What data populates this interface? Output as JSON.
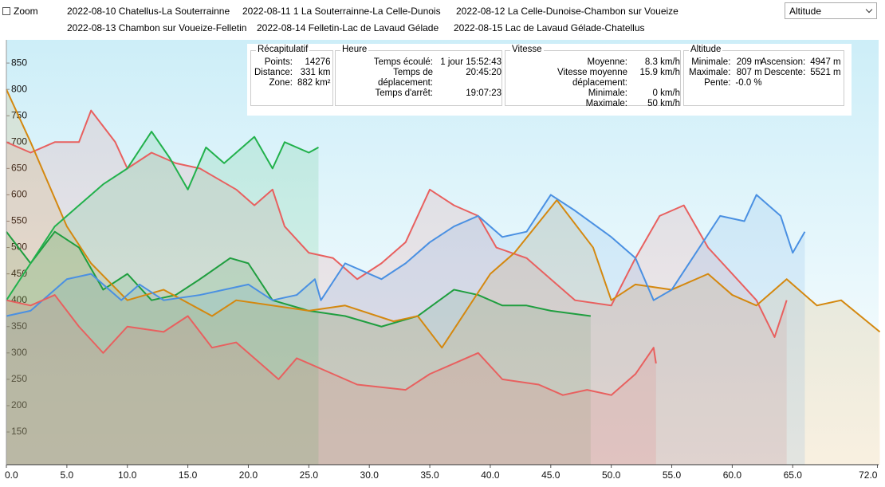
{
  "toolbar": {
    "zoom": "Zoom",
    "dropdown": "Altitude"
  },
  "chart_data": {
    "type": "line",
    "xlim": [
      0,
      72.1
    ],
    "ylim": [
      88,
      894
    ],
    "xticks": [
      {
        "value": 0,
        "label": "0.0"
      },
      {
        "value": 5,
        "label": "5.0"
      },
      {
        "value": 10,
        "label": "10.0"
      },
      {
        "value": 15,
        "label": "15.0"
      },
      {
        "value": 20,
        "label": "20.0"
      },
      {
        "value": 25,
        "label": "25.0"
      },
      {
        "value": 30,
        "label": "30.0"
      },
      {
        "value": 35,
        "label": "35.0"
      },
      {
        "value": 40,
        "label": "40.0"
      },
      {
        "value": 45,
        "label": "45.0"
      },
      {
        "value": 50,
        "label": "50.0"
      },
      {
        "value": 55,
        "label": "55.0"
      },
      {
        "value": 60,
        "label": "60.0"
      },
      {
        "value": 65,
        "label": "65.0"
      },
      {
        "value": 72,
        "label": "72.0"
      }
    ],
    "yticks": [
      150,
      200,
      250,
      300,
      350,
      400,
      450,
      500,
      550,
      600,
      650,
      700,
      750,
      800,
      850
    ],
    "series": [
      {
        "name": "2022-08-10 Chatellus-La Souterrainne",
        "color": "#1f9e3f",
        "x": [
          0,
          2,
          4,
          6,
          8,
          10,
          12,
          14,
          16,
          18.5,
          20,
          22,
          25,
          28,
          31,
          34,
          37,
          39,
          41,
          43,
          45,
          48.3
        ],
        "values": [
          530,
          470,
          530,
          500,
          420,
          450,
          400,
          410,
          440,
          480,
          470,
          400,
          380,
          370,
          350,
          370,
          420,
          410,
          390,
          390,
          380,
          370
        ]
      },
      {
        "name": "2022-08-11 1 La Souterrainne-La Celle-Dunois",
        "color": "#e8605f",
        "x": [
          0,
          2,
          4,
          6,
          7,
          9,
          10,
          12,
          14,
          16,
          19,
          20.5,
          22,
          23,
          25,
          27,
          29,
          31,
          33,
          35,
          37,
          39,
          40.5,
          43,
          45,
          47,
          50,
          52,
          54,
          56,
          58,
          60,
          62,
          63.5,
          64.5
        ],
        "values": [
          700,
          680,
          700,
          700,
          760,
          700,
          650,
          680,
          660,
          650,
          610,
          580,
          610,
          540,
          490,
          480,
          440,
          470,
          510,
          610,
          580,
          560,
          500,
          480,
          440,
          400,
          390,
          480,
          560,
          580,
          500,
          450,
          400,
          330,
          400
        ]
      },
      {
        "name": "2022-08-12 La Celle-Dunoise-Chambon sur Voueize",
        "color": "#d4880f",
        "x": [
          0,
          2,
          5,
          7,
          10,
          13,
          17,
          19,
          25,
          28,
          32,
          34,
          36,
          38,
          40,
          42,
          45.5,
          48.5,
          50,
          52,
          55,
          58,
          60,
          62,
          64.5,
          67,
          69,
          72.2
        ],
        "values": [
          800,
          700,
          540,
          470,
          400,
          420,
          370,
          400,
          380,
          390,
          360,
          370,
          310,
          380,
          450,
          490,
          590,
          500,
          400,
          430,
          420,
          450,
          410,
          390,
          440,
          390,
          400,
          340
        ]
      },
      {
        "name": "2022-08-13 Chambon sur Voueize-Felletin",
        "color": "#4a90e2",
        "x": [
          0,
          2,
          5,
          7,
          9.5,
          11,
          13,
          16,
          20,
          22,
          24,
          25.5,
          26,
          28,
          31,
          33,
          35,
          37,
          39,
          41,
          43,
          45,
          47,
          50,
          52,
          53.5,
          55,
          57,
          59,
          61,
          62,
          64,
          65,
          66
        ],
        "values": [
          370,
          380,
          440,
          450,
          400,
          430,
          400,
          410,
          430,
          400,
          410,
          440,
          400,
          470,
          440,
          470,
          510,
          540,
          560,
          520,
          530,
          600,
          570,
          520,
          480,
          400,
          420,
          490,
          560,
          550,
          600,
          560,
          490,
          530
        ]
      },
      {
        "name": "2022-08-14 Felletin-Lac de Lavaud Gélade",
        "color": "#22b14c",
        "x": [
          0,
          2,
          4,
          6,
          8,
          10,
          12,
          13.5,
          15,
          16.5,
          18,
          20.5,
          22,
          23,
          25,
          25.8
        ],
        "values": [
          400,
          470,
          540,
          580,
          620,
          650,
          720,
          670,
          610,
          690,
          660,
          710,
          650,
          700,
          680,
          690
        ]
      },
      {
        "name": "2022-08-15 Lac de Lavaud Gélade-Chatellus",
        "color": "#e8605f",
        "x": [
          0,
          2,
          4,
          6,
          8,
          10,
          13,
          15,
          17,
          19,
          21,
          22.5,
          24,
          27,
          29,
          33,
          35,
          37,
          39,
          41,
          44,
          46,
          48,
          50,
          52,
          53.5,
          53.7
        ],
        "values": [
          400,
          390,
          410,
          350,
          300,
          350,
          340,
          370,
          310,
          320,
          280,
          250,
          290,
          260,
          240,
          230,
          260,
          280,
          300,
          250,
          240,
          220,
          230,
          220,
          260,
          310,
          280
        ]
      }
    ]
  },
  "summary": [
    {
      "title": "Récapitulatif",
      "rows": [
        [
          "Points:",
          "14276"
        ],
        [
          "Distance:",
          "331 km"
        ],
        [
          "Zone:",
          "882 km²"
        ]
      ]
    },
    {
      "title": "Heure",
      "rows": [
        [
          "Temps écoulé:",
          "1 jour 15:52:43"
        ],
        [
          "Temps de déplacement:",
          "20:45:20"
        ],
        [
          "Temps d'arrêt:",
          "19:07:23"
        ]
      ]
    },
    {
      "title": "Vitesse",
      "rows": [
        [
          "Moyenne:",
          "8.3 km/h"
        ],
        [
          "Vitesse moyenne déplacement:",
          "15.9 km/h"
        ],
        [
          "Minimale:",
          "0 km/h"
        ],
        [
          "Maximale:",
          "50 km/h"
        ]
      ]
    },
    {
      "title": "Altitude",
      "rows": [
        [
          "Minimale:",
          "209 m"
        ],
        [
          "Maximale:",
          "807 m"
        ],
        [
          "Pente:",
          "-0.0 %"
        ]
      ],
      "rows2": [
        [
          "Ascension:",
          "4947 m"
        ],
        [
          "Descente:",
          "5521 m"
        ]
      ]
    }
  ]
}
